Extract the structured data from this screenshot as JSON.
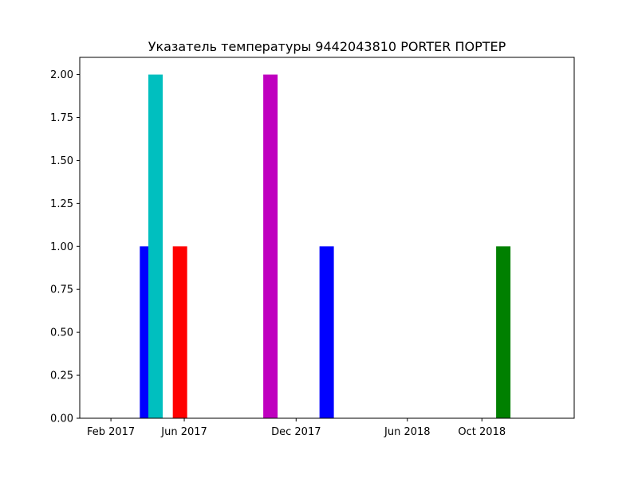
{
  "chart_data": {
    "type": "bar",
    "title": "Указатель температуры 9442043810 PORTER ПОРТЕР",
    "xlabel": "",
    "ylabel": "",
    "x_axis": {
      "kind": "date",
      "range": [
        "2016-12-12",
        "2019-03-01"
      ],
      "ticks": [
        {
          "date": "2017-02-01",
          "label": "Feb 2017"
        },
        {
          "date": "2017-06-01",
          "label": "Jun 2017"
        },
        {
          "date": "2017-12-01",
          "label": "Dec 2017"
        },
        {
          "date": "2018-06-01",
          "label": "Jun 2018"
        },
        {
          "date": "2018-10-01",
          "label": "Oct 2018"
        }
      ]
    },
    "y_axis": {
      "range": [
        0,
        2.1
      ],
      "ticks": [
        "0.00",
        "0.25",
        "0.50",
        "0.75",
        "1.00",
        "1.25",
        "1.50",
        "1.75",
        "2.00"
      ]
    },
    "bars": [
      {
        "date": "2017-04-01",
        "value": 1,
        "color": "#0000ff"
      },
      {
        "date": "2017-04-15",
        "value": 2,
        "color": "#00bfbf"
      },
      {
        "date": "2017-05-25",
        "value": 1,
        "color": "#ff0000"
      },
      {
        "date": "2017-10-20",
        "value": 2,
        "color": "#bf00bf"
      },
      {
        "date": "2018-01-20",
        "value": 1,
        "color": "#0000ff"
      },
      {
        "date": "2018-11-05",
        "value": 1,
        "color": "#008000"
      }
    ],
    "grid": false,
    "legend": "none"
  }
}
